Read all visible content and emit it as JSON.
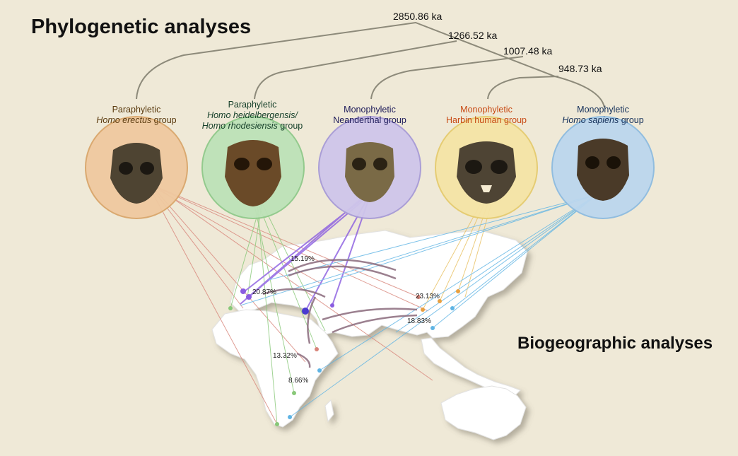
{
  "titles": {
    "phylogenetic": "Phylogenetic analyses",
    "biogeographic": "Biogeographic analyses"
  },
  "tree": {
    "node_ages": [
      "2850.86 ka",
      "1266.52 ka",
      "1007.48 ka",
      "948.73 ka"
    ]
  },
  "groups": [
    {
      "type": "Paraphyletic",
      "taxon": "Homo erectus",
      "suffix": "group",
      "color": "#efc9a0",
      "icon": "skull-icon"
    },
    {
      "type": "Paraphyletic",
      "taxon": "Homo heidelbergensis/",
      "taxon2": "Homo rhodesiensis",
      "suffix": "group",
      "color": "#bde2b8",
      "icon": "skull-icon"
    },
    {
      "type": "Monophyletic",
      "taxon": "Neanderthal group",
      "color": "#cfc6ea",
      "icon": "skull-icon"
    },
    {
      "type": "Monophyletic",
      "taxon": "Harbin human group",
      "color": "#f5e4a6",
      "icon": "skull-icon"
    },
    {
      "type": "Monophyletic",
      "taxon": "Homo sapiens",
      "suffix": "group",
      "color": "#bcd7ee",
      "icon": "skull-icon"
    }
  ],
  "migration_percentages": [
    "15.19%",
    "20.87%",
    "23.13%",
    "18.83%",
    "13.32%",
    "8.66%"
  ]
}
